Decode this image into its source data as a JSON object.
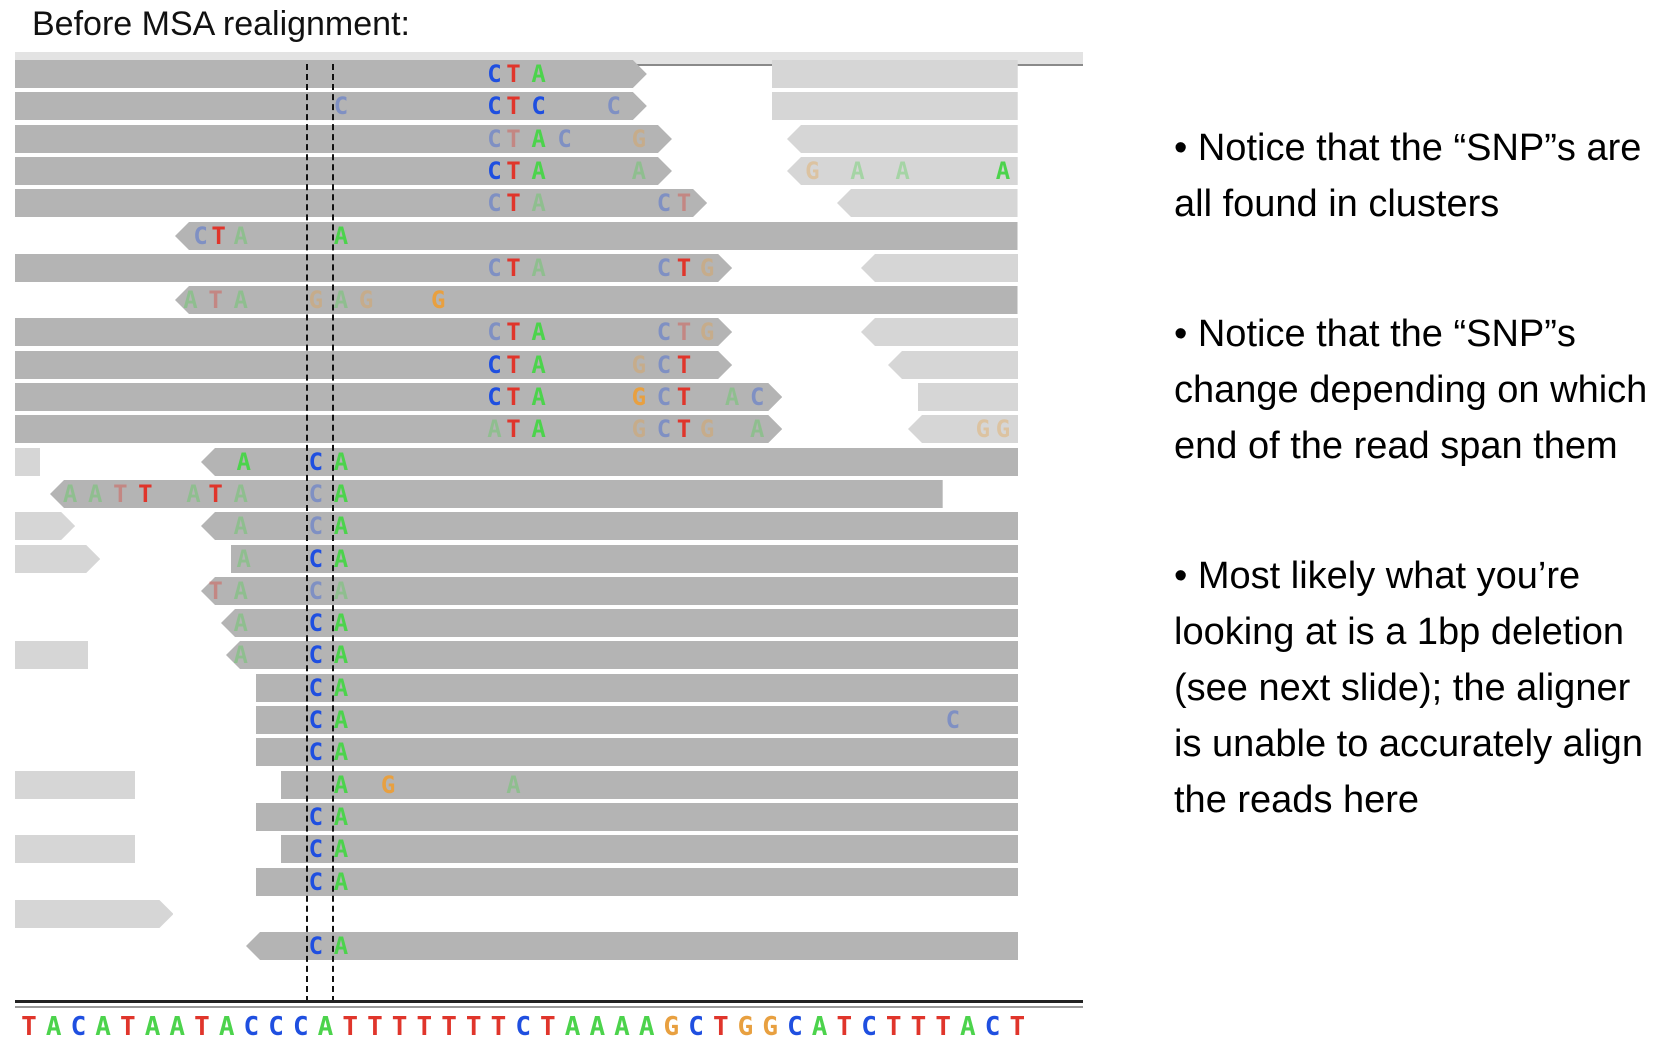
{
  "title": "Before MSA realignment:",
  "notes": [
    "• Notice that the “SNP”s are all found in clusters",
    "• Notice that the “SNP”s change depending on which end of the read span them",
    "• Most likely what you’re looking at is a 1bp deletion (see next slide); the aligner is unable to accurately align the reads here"
  ],
  "reference": {
    "sequence": "TACATAATACCCATTTTTTTCTAAAAGCTGGCATCTTTACT"
  },
  "colors": {
    "A": "#4cd34c",
    "C": "#1f4fe0",
    "G": "#e8a040",
    "T": "#e0352b",
    "read_dark": "#b4b4b4",
    "read_light": "#d6d6d6"
  },
  "reads": [
    {
      "s": 0,
      "e": 0.63,
      "tint": "d",
      "arrow": "r",
      "bases": [
        {
          "p": 0.478,
          "b": "C"
        },
        {
          "p": 0.497,
          "b": "T"
        },
        {
          "p": 0.522,
          "b": "A"
        }
      ]
    },
    {
      "s": 0.755,
      "e": 1,
      "tint": "l",
      "arrow": "n",
      "bases": []
    },
    {
      "s": 0,
      "e": 0.63,
      "tint": "d",
      "arrow": "r",
      "bases": [
        {
          "p": 0.325,
          "b": "C",
          "f": 1
        },
        {
          "p": 0.478,
          "b": "C"
        },
        {
          "p": 0.497,
          "b": "T"
        },
        {
          "p": 0.522,
          "b": "C"
        },
        {
          "p": 0.597,
          "b": "C",
          "f": 1
        }
      ]
    },
    {
      "s": 0.755,
      "e": 1,
      "tint": "l",
      "arrow": "n",
      "bases": []
    },
    {
      "s": 0,
      "e": 0.655,
      "tint": "d",
      "arrow": "r",
      "bases": [
        {
          "p": 0.478,
          "b": "C",
          "f": 1
        },
        {
          "p": 0.497,
          "b": "T",
          "f": 1
        },
        {
          "p": 0.522,
          "b": "A"
        },
        {
          "p": 0.548,
          "b": "C",
          "f": 1
        },
        {
          "p": 0.622,
          "b": "G",
          "f": 1
        }
      ]
    },
    {
      "s": 0.77,
      "e": 1,
      "tint": "l",
      "arrow": "l",
      "bases": []
    },
    {
      "s": 0,
      "e": 0.655,
      "tint": "d",
      "arrow": "r",
      "bases": [
        {
          "p": 0.478,
          "b": "C"
        },
        {
          "p": 0.497,
          "b": "T"
        },
        {
          "p": 0.522,
          "b": "A"
        },
        {
          "p": 0.622,
          "b": "A",
          "f": 1
        }
      ]
    },
    {
      "s": 0.77,
      "e": 1,
      "tint": "l",
      "arrow": "l",
      "bases": [
        {
          "p": 0.795,
          "b": "G",
          "f": 1
        },
        {
          "p": 0.84,
          "b": "A",
          "f": 1
        },
        {
          "p": 0.885,
          "b": "A",
          "f": 1
        },
        {
          "p": 0.985,
          "b": "A"
        }
      ]
    },
    {
      "s": 0,
      "e": 0.69,
      "tint": "d",
      "arrow": "r",
      "bases": [
        {
          "p": 0.478,
          "b": "C",
          "f": 1
        },
        {
          "p": 0.497,
          "b": "T"
        },
        {
          "p": 0.522,
          "b": "A",
          "f": 1
        },
        {
          "p": 0.647,
          "b": "C",
          "f": 1
        },
        {
          "p": 0.667,
          "b": "T",
          "f": 1
        }
      ]
    },
    {
      "s": 0.82,
      "e": 1,
      "tint": "l",
      "arrow": "l",
      "bases": []
    },
    {
      "s": 0.16,
      "e": 1,
      "tint": "d",
      "arrow": "l",
      "bases": [
        {
          "p": 0.185,
          "b": "C",
          "f": 1
        },
        {
          "p": 0.203,
          "b": "T"
        },
        {
          "p": 0.225,
          "b": "A",
          "f": 1
        },
        {
          "p": 0.325,
          "b": "A"
        }
      ]
    },
    {
      "s": 0,
      "e": 0.715,
      "tint": "d",
      "arrow": "r",
      "bases": [
        {
          "p": 0.478,
          "b": "C",
          "f": 1
        },
        {
          "p": 0.497,
          "b": "T"
        },
        {
          "p": 0.522,
          "b": "A",
          "f": 1
        },
        {
          "p": 0.647,
          "b": "C",
          "f": 1
        },
        {
          "p": 0.667,
          "b": "T"
        },
        {
          "p": 0.69,
          "b": "G",
          "f": 1
        }
      ]
    },
    {
      "s": 0.843,
      "e": 1,
      "tint": "l",
      "arrow": "l",
      "bases": []
    },
    {
      "s": 0.16,
      "e": 1,
      "tint": "d",
      "arrow": "l",
      "bases": [
        {
          "p": 0.175,
          "b": "A",
          "f": 1
        },
        {
          "p": 0.2,
          "b": "T",
          "f": 1
        },
        {
          "p": 0.225,
          "b": "A",
          "f": 1
        },
        {
          "p": 0.3,
          "b": "G",
          "f": 1
        },
        {
          "p": 0.325,
          "b": "A",
          "f": 1
        },
        {
          "p": 0.35,
          "b": "G",
          "f": 1
        },
        {
          "p": 0.422,
          "b": "G"
        }
      ]
    },
    {
      "s": 0,
      "e": 0.715,
      "tint": "d",
      "arrow": "r",
      "bases": [
        {
          "p": 0.478,
          "b": "C",
          "f": 1
        },
        {
          "p": 0.497,
          "b": "T"
        },
        {
          "p": 0.522,
          "b": "A"
        },
        {
          "p": 0.647,
          "b": "C",
          "f": 1
        },
        {
          "p": 0.667,
          "b": "T",
          "f": 1
        },
        {
          "p": 0.69,
          "b": "G",
          "f": 1
        }
      ]
    },
    {
      "s": 0.843,
      "e": 1,
      "tint": "l",
      "arrow": "l",
      "bases": []
    },
    {
      "s": 0,
      "e": 0.715,
      "tint": "d",
      "arrow": "r",
      "bases": [
        {
          "p": 0.478,
          "b": "C"
        },
        {
          "p": 0.497,
          "b": "T"
        },
        {
          "p": 0.522,
          "b": "A"
        },
        {
          "p": 0.622,
          "b": "G",
          "f": 1
        },
        {
          "p": 0.647,
          "b": "C",
          "f": 1
        },
        {
          "p": 0.667,
          "b": "T"
        }
      ]
    },
    {
      "s": 0.87,
      "e": 1,
      "tint": "l",
      "arrow": "l",
      "bases": []
    },
    {
      "s": 0,
      "e": 0.765,
      "tint": "d",
      "arrow": "r",
      "bases": [
        {
          "p": 0.478,
          "b": "C"
        },
        {
          "p": 0.497,
          "b": "T"
        },
        {
          "p": 0.522,
          "b": "A"
        },
        {
          "p": 0.622,
          "b": "G"
        },
        {
          "p": 0.647,
          "b": "C",
          "f": 1
        },
        {
          "p": 0.667,
          "b": "T"
        },
        {
          "p": 0.715,
          "b": "A",
          "f": 1
        },
        {
          "p": 0.74,
          "b": "C",
          "f": 1
        }
      ]
    },
    {
      "s": 0.9,
      "e": 1,
      "tint": "l",
      "arrow": "n",
      "bases": []
    },
    {
      "s": 0,
      "e": 0.765,
      "tint": "d",
      "arrow": "r",
      "bases": [
        {
          "p": 0.478,
          "b": "A",
          "f": 1
        },
        {
          "p": 0.497,
          "b": "T"
        },
        {
          "p": 0.522,
          "b": "A"
        },
        {
          "p": 0.622,
          "b": "G",
          "f": 1
        },
        {
          "p": 0.647,
          "b": "C",
          "f": 1
        },
        {
          "p": 0.667,
          "b": "T"
        },
        {
          "p": 0.69,
          "b": "G",
          "f": 1
        },
        {
          "p": 0.74,
          "b": "A",
          "f": 1
        }
      ]
    },
    {
      "s": 0.89,
      "e": 1,
      "tint": "l",
      "arrow": "l",
      "bases": [
        {
          "p": 0.965,
          "b": "G",
          "f": 1
        },
        {
          "p": 0.985,
          "b": "G",
          "f": 1
        }
      ]
    },
    {
      "s": 0,
      "e": 0.025,
      "tint": "l",
      "arrow": "n",
      "bases": []
    },
    {
      "s": 0.185,
      "e": 1,
      "tint": "d",
      "arrow": "l",
      "bases": [
        {
          "p": 0.228,
          "b": "A"
        },
        {
          "p": 0.3,
          "b": "C"
        },
        {
          "p": 0.325,
          "b": "A"
        }
      ]
    },
    {
      "s": 0.035,
      "e": 0.925,
      "tint": "d",
      "arrow": "l",
      "bases": [
        {
          "p": 0.055,
          "b": "A",
          "f": 1
        },
        {
          "p": 0.08,
          "b": "A",
          "f": 1
        },
        {
          "p": 0.105,
          "b": "T",
          "f": 1
        },
        {
          "p": 0.13,
          "b": "T"
        },
        {
          "p": 0.178,
          "b": "A",
          "f": 1
        },
        {
          "p": 0.2,
          "b": "T"
        },
        {
          "p": 0.225,
          "b": "A",
          "f": 1
        },
        {
          "p": 0.3,
          "b": "C",
          "f": 1
        },
        {
          "p": 0.325,
          "b": "A"
        }
      ]
    },
    {
      "s": 0,
      "e": 0.06,
      "tint": "l",
      "arrow": "r",
      "bases": []
    },
    {
      "s": 0.185,
      "e": 1,
      "tint": "d",
      "arrow": "l",
      "bases": [
        {
          "p": 0.225,
          "b": "A",
          "f": 1
        },
        {
          "p": 0.3,
          "b": "C",
          "f": 1
        },
        {
          "p": 0.325,
          "b": "A"
        }
      ]
    },
    {
      "s": 0,
      "e": 0.085,
      "tint": "l",
      "arrow": "r",
      "bases": []
    },
    {
      "s": 0.215,
      "e": 1,
      "tint": "d",
      "arrow": "n",
      "bases": [
        {
          "p": 0.228,
          "b": "A",
          "f": 1
        },
        {
          "p": 0.3,
          "b": "C"
        },
        {
          "p": 0.325,
          "b": "A"
        }
      ]
    },
    {
      "s": 0.185,
      "e": 1,
      "tint": "d",
      "arrow": "l",
      "bases": [
        {
          "p": 0.2,
          "b": "T",
          "f": 1
        },
        {
          "p": 0.225,
          "b": "A",
          "f": 1
        },
        {
          "p": 0.3,
          "b": "C",
          "f": 1
        },
        {
          "p": 0.325,
          "b": "A",
          "f": 1
        }
      ]
    },
    {
      "s": 0.205,
      "e": 1,
      "tint": "d",
      "arrow": "l",
      "bases": [
        {
          "p": 0.225,
          "b": "A",
          "f": 1
        },
        {
          "p": 0.3,
          "b": "C"
        },
        {
          "p": 0.325,
          "b": "A"
        }
      ]
    },
    {
      "s": 0,
      "e": 0.073,
      "tint": "l",
      "arrow": "n",
      "bases": []
    },
    {
      "s": 0.21,
      "e": 1,
      "tint": "d",
      "arrow": "l",
      "bases": [
        {
          "p": 0.225,
          "b": "A",
          "f": 1
        },
        {
          "p": 0.3,
          "b": "C"
        },
        {
          "p": 0.325,
          "b": "A"
        }
      ]
    },
    {
      "s": 0.24,
      "e": 1,
      "tint": "d",
      "arrow": "n",
      "bases": [
        {
          "p": 0.3,
          "b": "C"
        },
        {
          "p": 0.325,
          "b": "A"
        }
      ]
    },
    {
      "s": 0.24,
      "e": 1,
      "tint": "d",
      "arrow": "n",
      "bases": [
        {
          "p": 0.3,
          "b": "C"
        },
        {
          "p": 0.325,
          "b": "A"
        },
        {
          "p": 0.935,
          "b": "C",
          "f": 1
        }
      ]
    },
    {
      "s": 0.24,
      "e": 1,
      "tint": "d",
      "arrow": "n",
      "bases": [
        {
          "p": 0.3,
          "b": "C"
        },
        {
          "p": 0.325,
          "b": "A"
        }
      ]
    },
    {
      "s": 0,
      "e": 0.12,
      "tint": "l",
      "arrow": "n",
      "bases": []
    },
    {
      "s": 0.265,
      "e": 1,
      "tint": "d",
      "arrow": "n",
      "bases": [
        {
          "p": 0.325,
          "b": "A"
        },
        {
          "p": 0.372,
          "b": "G"
        },
        {
          "p": 0.497,
          "b": "A",
          "f": 1
        }
      ]
    },
    {
      "s": 0.24,
      "e": 1,
      "tint": "d",
      "arrow": "n",
      "bases": [
        {
          "p": 0.3,
          "b": "C"
        },
        {
          "p": 0.325,
          "b": "A"
        }
      ]
    },
    {
      "s": 0,
      "e": 0.12,
      "tint": "l",
      "arrow": "n",
      "bases": []
    },
    {
      "s": 0.265,
      "e": 1,
      "tint": "d",
      "arrow": "n",
      "bases": [
        {
          "p": 0.3,
          "b": "C"
        },
        {
          "p": 0.325,
          "b": "A"
        }
      ]
    },
    {
      "s": 0.24,
      "e": 1,
      "tint": "d",
      "arrow": "n",
      "bases": [
        {
          "p": 0.3,
          "b": "C"
        },
        {
          "p": 0.325,
          "b": "A"
        }
      ]
    },
    {
      "s": 0,
      "e": 0.158,
      "tint": "l",
      "arrow": "r",
      "bases": []
    },
    {
      "s": 0.29,
      "e": 1,
      "tint": "d",
      "arrow": "n",
      "bases": [
        {
          "p": 0.325,
          "b": "A"
        }
      ]
    },
    {
      "s": 0.23,
      "e": 1,
      "tint": "d",
      "arrow": "l",
      "bases": [
        {
          "p": 0.3,
          "b": "C"
        },
        {
          "p": 0.325,
          "b": "A"
        }
      ]
    }
  ],
  "row_index": [
    0,
    0,
    1,
    1,
    2,
    2,
    3,
    3,
    4,
    4,
    5,
    6,
    6,
    7,
    8,
    8,
    9,
    9,
    10,
    10,
    11,
    11,
    12,
    12,
    13,
    14,
    14,
    15,
    15,
    16,
    17,
    18,
    18,
    19,
    20,
    21,
    22,
    22,
    23,
    24,
    24,
    25,
    26,
    27,
    27,
    28
  ]
}
